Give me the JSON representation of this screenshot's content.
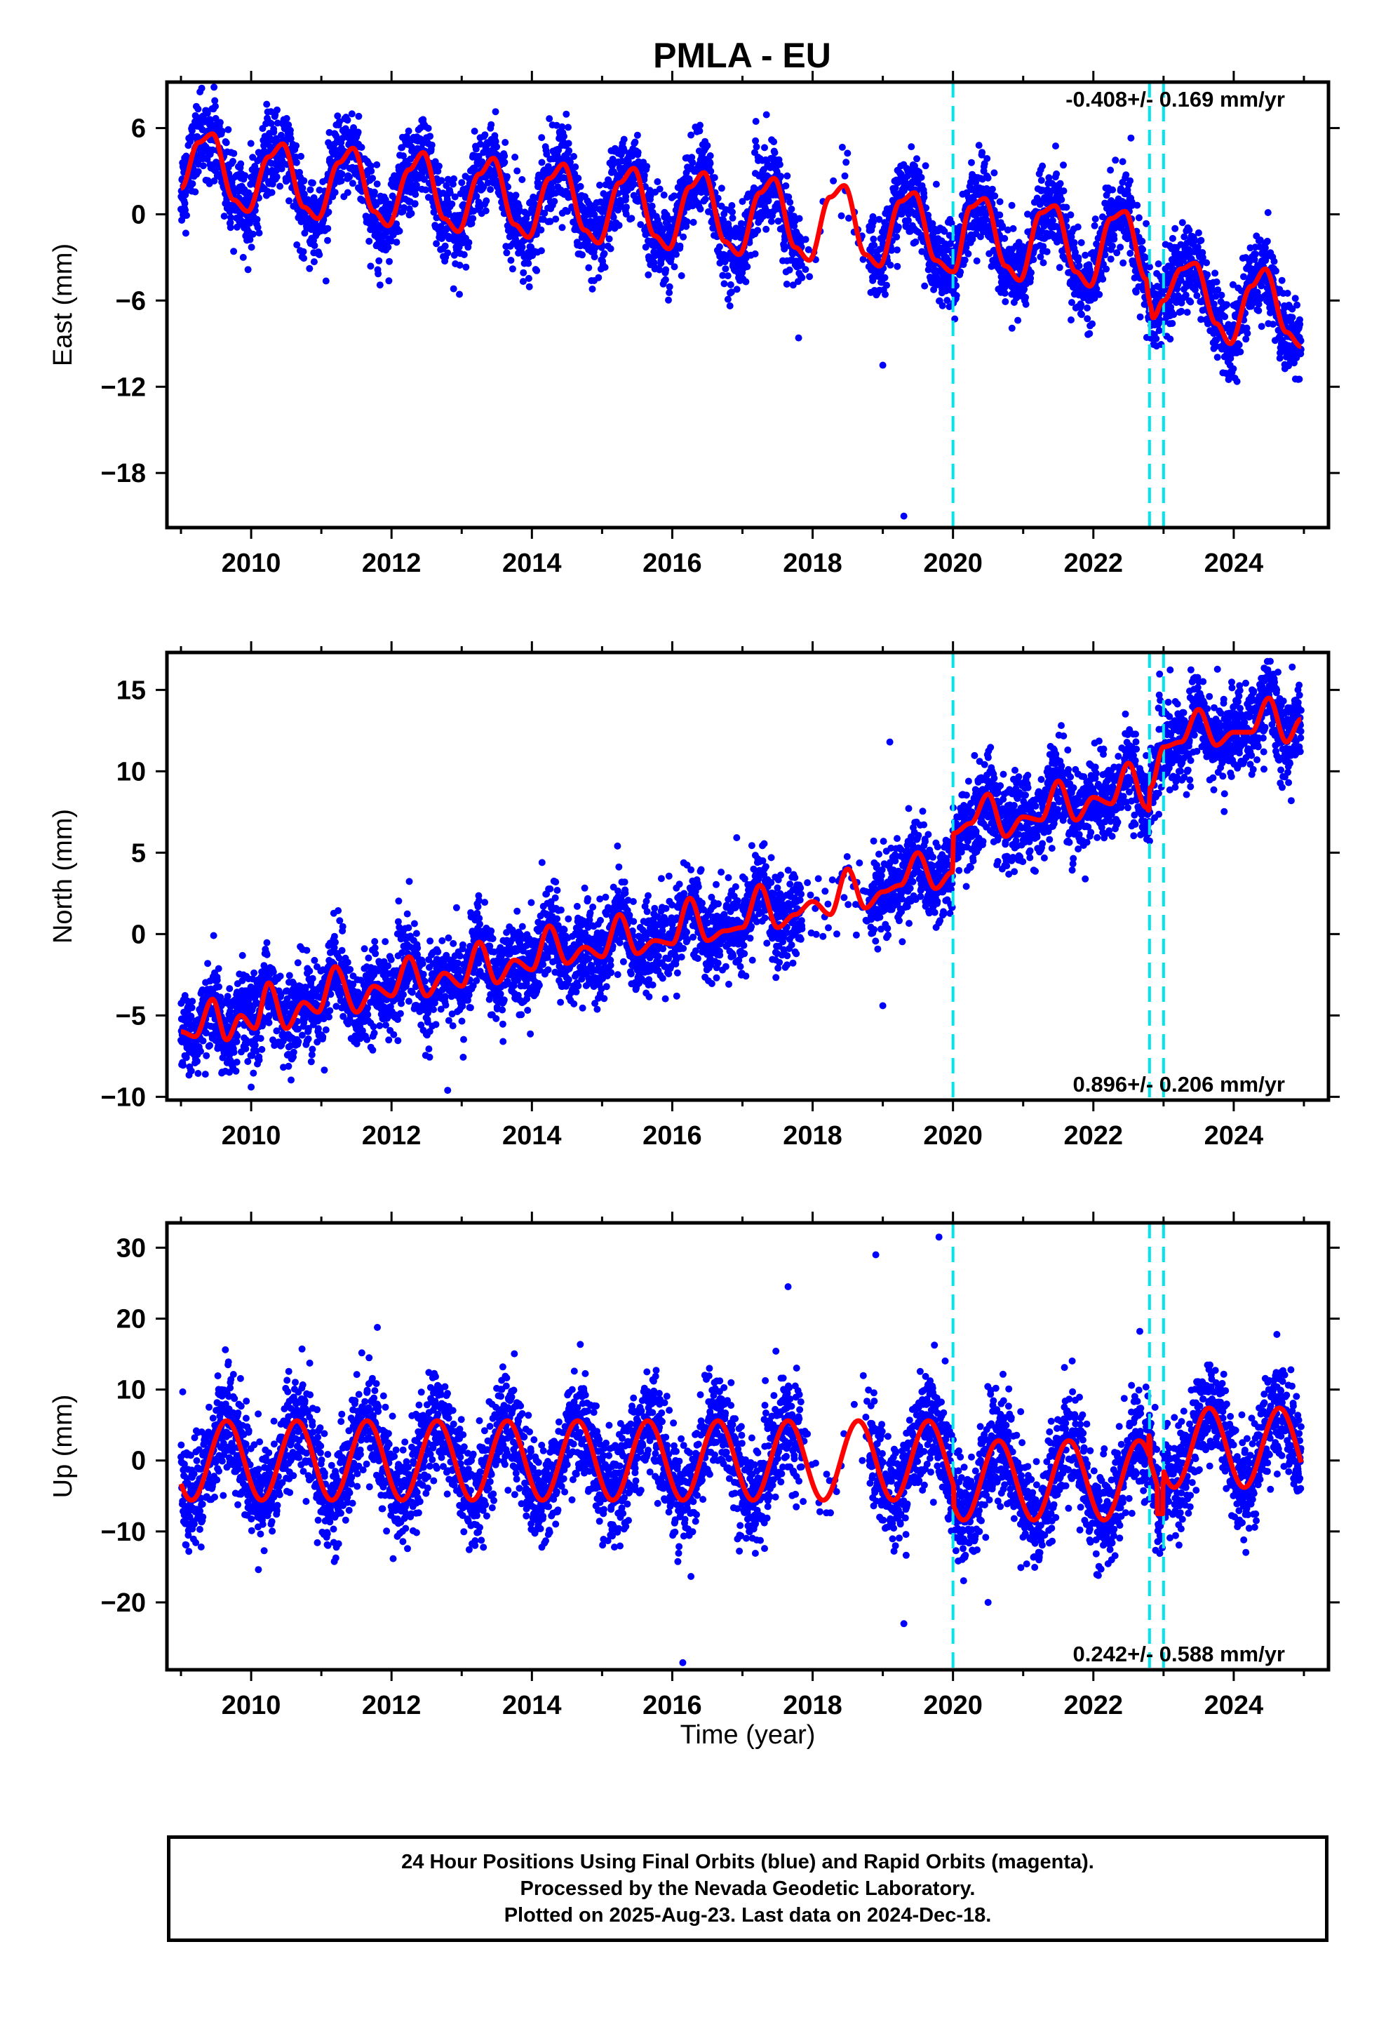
{
  "title": "PMLA - EU",
  "xlabel": "Time (year)",
  "x_ticks": [
    2010,
    2012,
    2014,
    2016,
    2018,
    2020,
    2022,
    2024
  ],
  "xlim": [
    2008.8,
    2025.35
  ],
  "vlines": [
    2020.0,
    2022.8,
    2023.0
  ],
  "colors": {
    "points": "#0000ff",
    "fit": "#ff0000",
    "vline": "#00e5ee",
    "frame": "#000000"
  },
  "footer": {
    "line1": "24 Hour Positions Using Final Orbits (blue) and Rapid Orbits (magenta).",
    "line2": "Processed by the Nevada Geodetic Laboratory.",
    "line3": "Plotted on 2025-Aug-23. Last data on 2024-Dec-18."
  },
  "chart_data": [
    {
      "type": "scatter",
      "component": "east",
      "ylabel": "East (mm)",
      "ylim": [
        -21.8,
        9.2
      ],
      "y_ticks": [
        6,
        0,
        -6,
        -12,
        -18
      ],
      "y_tick_labels": [
        "6",
        "0",
        "−6",
        "−12",
        "−18"
      ],
      "rate_label": "-0.408+/- 0.169 mm/yr",
      "rate_position": "top-right",
      "fit": {
        "x": [
          2009.0,
          2009.25,
          2009.45,
          2009.75,
          2009.95,
          2010.25,
          2010.45,
          2010.75,
          2010.95,
          2011.25,
          2011.45,
          2011.75,
          2011.95,
          2012.25,
          2012.45,
          2012.75,
          2012.95,
          2013.25,
          2013.45,
          2013.75,
          2013.95,
          2014.25,
          2014.45,
          2014.75,
          2014.95,
          2015.25,
          2015.45,
          2015.75,
          2015.95,
          2016.25,
          2016.45,
          2016.75,
          2016.95,
          2017.25,
          2017.45,
          2017.75,
          2017.95,
          2018.25,
          2018.45,
          2018.75,
          2018.95,
          2019.25,
          2019.45,
          2019.75,
          2019.99,
          2020.01,
          2020.25,
          2020.45,
          2020.75,
          2020.95,
          2021.25,
          2021.45,
          2021.75,
          2021.95,
          2022.25,
          2022.45,
          2022.75,
          2022.79,
          2022.81,
          2022.85,
          2023.0,
          2023.25,
          2023.45,
          2023.75,
          2023.95,
          2024.25,
          2024.45,
          2024.75,
          2024.96
        ],
        "y": [
          1.8,
          5.0,
          5.6,
          1.0,
          0.2,
          4.0,
          4.9,
          0.5,
          -0.3,
          3.6,
          4.6,
          0.2,
          -0.8,
          3.1,
          4.3,
          -0.3,
          -1.2,
          2.8,
          3.9,
          -0.7,
          -1.6,
          2.5,
          3.5,
          -1.1,
          -2.0,
          2.2,
          3.2,
          -1.5,
          -2.4,
          1.9,
          2.9,
          -1.9,
          -2.8,
          1.5,
          2.5,
          -2.3,
          -3.2,
          1.2,
          2.0,
          -2.8,
          -3.6,
          0.9,
          1.5,
          -3.2,
          -4.0,
          -4.0,
          0.5,
          1.1,
          -3.6,
          -4.6,
          0.1,
          0.6,
          -4.0,
          -5.0,
          -0.3,
          0.2,
          -4.5,
          -5.8,
          -6.3,
          -7.2,
          -6.0,
          -3.8,
          -3.4,
          -7.6,
          -9.0,
          -5.0,
          -3.8,
          -8.2,
          -9.2
        ]
      },
      "points_model": {
        "scatter_mm": 1.4,
        "outliers_mm": [
          [
            2019.3,
            -21.0
          ],
          [
            2017.8,
            -8.6
          ],
          [
            2019.0,
            -10.5
          ]
        ]
      }
    },
    {
      "type": "scatter",
      "component": "north",
      "ylabel": "North (mm)",
      "ylim": [
        -10.2,
        17.3
      ],
      "y_ticks": [
        15,
        10,
        5,
        0,
        -5,
        -10
      ],
      "y_tick_labels": [
        "15",
        "10",
        "5",
        "0",
        "−5",
        "−10"
      ],
      "rate_label": "0.896+/- 0.206 mm/yr",
      "rate_position": "bottom-right",
      "fit": {
        "x": [
          2009.0,
          2009.2,
          2009.45,
          2009.65,
          2009.85,
          2010.05,
          2010.25,
          2010.5,
          2010.75,
          2010.95,
          2011.2,
          2011.5,
          2011.75,
          2012.0,
          2012.25,
          2012.5,
          2012.75,
          2013.0,
          2013.25,
          2013.5,
          2013.75,
          2014.0,
          2014.25,
          2014.5,
          2014.75,
          2015.0,
          2015.25,
          2015.5,
          2015.75,
          2016.0,
          2016.25,
          2016.5,
          2016.75,
          2017.0,
          2017.25,
          2017.5,
          2017.75,
          2018.0,
          2018.25,
          2018.5,
          2018.75,
          2019.0,
          2019.25,
          2019.5,
          2019.75,
          2019.99,
          2020.01,
          2020.25,
          2020.5,
          2020.75,
          2021.0,
          2021.25,
          2021.5,
          2021.75,
          2022.0,
          2022.25,
          2022.5,
          2022.75,
          2022.79,
          2022.81,
          2023.0,
          2023.25,
          2023.5,
          2023.75,
          2024.0,
          2024.25,
          2024.5,
          2024.75,
          2024.96
        ],
        "y": [
          -6.0,
          -6.3,
          -4.0,
          -6.5,
          -5.0,
          -5.8,
          -3.0,
          -5.8,
          -4.2,
          -4.8,
          -2.0,
          -4.8,
          -3.2,
          -3.8,
          -1.4,
          -3.8,
          -2.4,
          -3.2,
          -0.5,
          -3.0,
          -1.6,
          -2.2,
          0.5,
          -1.8,
          -0.8,
          -1.4,
          1.2,
          -1.2,
          -0.4,
          -0.6,
          2.2,
          -0.4,
          0.2,
          0.4,
          3.0,
          0.4,
          1.2,
          2.0,
          1.2,
          4.0,
          1.6,
          2.6,
          3.0,
          5.0,
          2.8,
          3.8,
          6.2,
          6.8,
          8.6,
          6.0,
          7.2,
          7.0,
          9.4,
          7.0,
          8.4,
          8.0,
          10.5,
          7.8,
          7.6,
          9.0,
          11.5,
          11.8,
          13.8,
          11.6,
          12.4,
          12.4,
          14.5,
          11.8,
          13.2
        ]
      },
      "points_model": {
        "scatter_mm": 1.3,
        "outliers_mm": [
          [
            2012.8,
            -9.6
          ],
          [
            2010.0,
            -9.4
          ],
          [
            2019.0,
            -4.4
          ],
          [
            2019.1,
            11.8
          ]
        ]
      }
    },
    {
      "type": "scatter",
      "component": "up",
      "ylabel": "Up (mm)",
      "ylim": [
        -29.5,
        33.5
      ],
      "y_ticks": [
        30,
        20,
        10,
        0,
        -10,
        -20
      ],
      "y_tick_labels": [
        "30",
        "20",
        "10",
        "0",
        "−10",
        "−20"
      ],
      "rate_label": "0.242+/- 0.588 mm/yr",
      "rate_position": "bottom-right",
      "fit": {
        "amplitude_mm": 5.6,
        "peak_phase_year": 0.65,
        "segments": [
          [
            2009.0,
            2019.99,
            0.0
          ],
          [
            2020.01,
            2022.79,
            -2.8
          ],
          [
            2022.81,
            2022.99,
            -3.2
          ],
          [
            2023.0,
            2024.96,
            1.8
          ]
        ],
        "notch": [
          2022.95,
          -7.5
        ]
      },
      "points_model": {
        "scatter_mm": 3.6,
        "outliers_mm": [
          [
            2019.8,
            31.5
          ],
          [
            2018.9,
            29.0
          ],
          [
            2017.65,
            24.5
          ],
          [
            2016.15,
            -28.5
          ],
          [
            2019.3,
            -23.0
          ],
          [
            2020.5,
            -20.0
          ]
        ]
      }
    }
  ]
}
